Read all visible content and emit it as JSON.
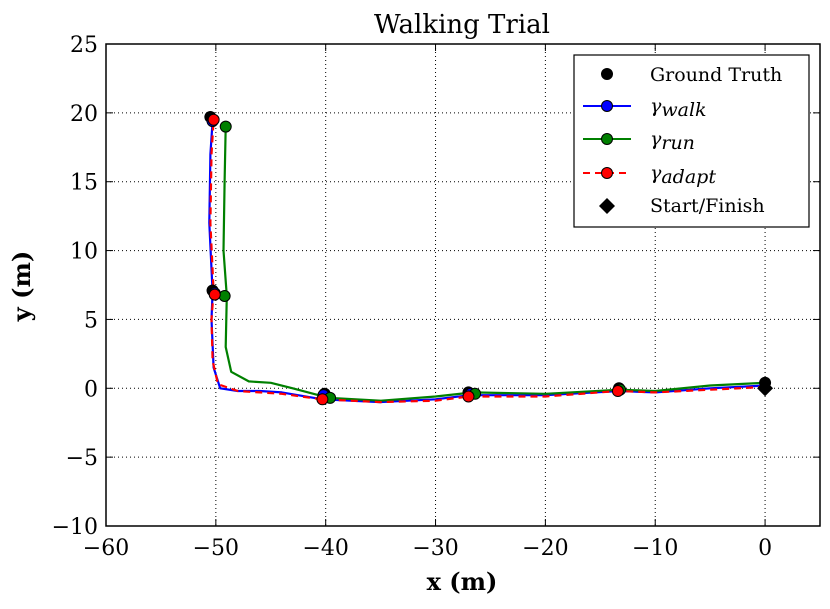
{
  "chart_data": {
    "type": "line",
    "title": "Walking Trial",
    "xlabel": "x (m)",
    "ylabel": "y (m)",
    "xlim": [
      -60,
      5
    ],
    "ylim": [
      -10,
      25
    ],
    "xticks": [
      -60,
      -50,
      -40,
      -30,
      -20,
      -10,
      0
    ],
    "yticks": [
      -10,
      -5,
      0,
      5,
      10,
      15,
      20,
      25
    ],
    "xtick_labels": [
      "−60",
      "−50",
      "−40",
      "−30",
      "−20",
      "−10",
      "0"
    ],
    "ytick_labels": [
      "−10",
      "−5",
      "0",
      "5",
      "10",
      "15",
      "20",
      "25"
    ],
    "grid": true,
    "legend_position": "top-right",
    "series": [
      {
        "name": "γwalk",
        "legend_main": "γ",
        "legend_sub": "walk",
        "color": "#0000ff",
        "style": "solid",
        "line": [
          [
            0,
            0.2
          ],
          [
            -5,
            0.0
          ],
          [
            -10,
            -0.3
          ],
          [
            -13.3,
            -0.2
          ],
          [
            -20,
            -0.5
          ],
          [
            -26.9,
            -0.5
          ],
          [
            -30,
            -0.8
          ],
          [
            -35,
            -1.0
          ],
          [
            -40.3,
            -0.8
          ],
          [
            -44,
            -0.3
          ],
          [
            -46,
            -0.2
          ],
          [
            -48,
            -0.2
          ],
          [
            -49.6,
            0.0
          ],
          [
            -50.2,
            1.5
          ],
          [
            -50.4,
            5.0
          ],
          [
            -50.3,
            7.0
          ],
          [
            -50.6,
            12.0
          ],
          [
            -50.5,
            17.0
          ],
          [
            -50.3,
            19.4
          ]
        ],
        "markers": [
          [
            -50.3,
            19.4
          ],
          [
            -50.1,
            6.9
          ],
          [
            -40.2,
            -0.5
          ],
          [
            -26.8,
            -0.4
          ],
          [
            -13.3,
            -0.1
          ]
        ]
      },
      {
        "name": "γrun",
        "legend_main": "γ",
        "legend_sub": "run",
        "color": "#008000",
        "style": "solid",
        "line": [
          [
            0,
            0.4
          ],
          [
            -5,
            0.2
          ],
          [
            -10,
            -0.2
          ],
          [
            -13.2,
            -0.1
          ],
          [
            -20,
            -0.4
          ],
          [
            -26.6,
            -0.3
          ],
          [
            -30,
            -0.6
          ],
          [
            -35,
            -0.9
          ],
          [
            -39.7,
            -0.7
          ],
          [
            -43,
            0.0
          ],
          [
            -45,
            0.4
          ],
          [
            -47,
            0.5
          ],
          [
            -48.6,
            1.2
          ],
          [
            -49.1,
            3.0
          ],
          [
            -49.0,
            6.7
          ],
          [
            -49.3,
            10.0
          ],
          [
            -49.2,
            15.0
          ],
          [
            -49.1,
            19.0
          ]
        ],
        "markers": [
          [
            -49.1,
            19.0
          ],
          [
            -49.2,
            6.7
          ],
          [
            -39.6,
            -0.7
          ],
          [
            -26.4,
            -0.4
          ],
          [
            -13.2,
            -0.1
          ]
        ]
      },
      {
        "name": "γadapt",
        "legend_main": "γ",
        "legend_sub": "adapt",
        "color": "#ff0000",
        "style": "dashed",
        "line": [
          [
            0,
            0.1
          ],
          [
            -5,
            -0.1
          ],
          [
            -10,
            -0.3
          ],
          [
            -13.4,
            -0.2
          ],
          [
            -20,
            -0.6
          ],
          [
            -27.0,
            -0.6
          ],
          [
            -30,
            -0.9
          ],
          [
            -35,
            -1.0
          ],
          [
            -40.4,
            -0.8
          ],
          [
            -44,
            -0.4
          ],
          [
            -46,
            -0.3
          ],
          [
            -48,
            -0.2
          ],
          [
            -49.8,
            0.3
          ],
          [
            -50.3,
            2.0
          ],
          [
            -50.4,
            5.0
          ],
          [
            -50.2,
            7.0
          ],
          [
            -50.5,
            12.0
          ],
          [
            -50.4,
            17.0
          ],
          [
            -50.2,
            19.5
          ]
        ],
        "markers": [
          [
            -50.2,
            19.5
          ],
          [
            -50.1,
            6.8
          ],
          [
            -40.3,
            -0.8
          ],
          [
            -27.0,
            -0.6
          ],
          [
            -13.4,
            -0.2
          ]
        ]
      }
    ],
    "ground_truth": {
      "name": "Ground Truth",
      "color": "#000000",
      "points": [
        [
          -50.5,
          19.7
        ],
        [
          -50.3,
          7.1
        ],
        [
          -40.1,
          -0.4
        ],
        [
          -27.0,
          -0.3
        ],
        [
          -13.3,
          0.0
        ],
        [
          0,
          0.4
        ]
      ]
    },
    "start_finish": {
      "name": "Start/Finish",
      "color": "#000000",
      "point": [
        0,
        0
      ]
    }
  }
}
